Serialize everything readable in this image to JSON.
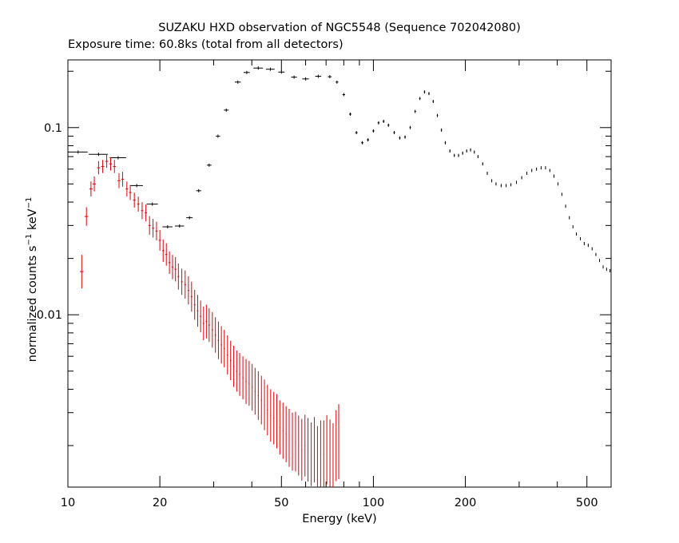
{
  "chart_data": {
    "type": "scatter",
    "title": "SUZAKU HXD observation of NGC5548 (Sequence 702042080)",
    "subtitle": "Exposure time: 60.8ks (total from all detectors)",
    "xlabel": "Energy (keV)",
    "ylabel_main": "normalized counts s",
    "ylabel_sup1": "−1",
    "ylabel_mid": " keV",
    "ylabel_sup2": "−1",
    "x_scale": "log",
    "y_scale": "log",
    "xlim": [
      10,
      600
    ],
    "ylim": [
      0.0012,
      0.23
    ],
    "x_ticks": [
      {
        "value": 10,
        "label": "10"
      },
      {
        "value": 20,
        "label": "20"
      },
      {
        "value": 50,
        "label": "50"
      },
      {
        "value": 100,
        "label": "100"
      },
      {
        "value": 200,
        "label": "200"
      },
      {
        "value": 500,
        "label": "500"
      }
    ],
    "y_ticks": [
      {
        "value": 0.1,
        "label": "0.1"
      },
      {
        "value": 0.01,
        "label": "0.01"
      }
    ],
    "grid": false,
    "colors": {
      "series1": "#000000",
      "series2": "#e00000",
      "axes": "#000000"
    },
    "series": [
      {
        "color": "#000000",
        "points": [
          [
            10.8,
            0.074,
            0.8,
            0.0
          ],
          [
            12.6,
            0.072,
            0.9,
            0.0
          ],
          [
            14.6,
            0.069,
            0.9,
            0.0
          ],
          [
            16.8,
            0.049,
            0.8,
            0.0
          ],
          [
            18.9,
            0.039,
            0.8,
            0.0
          ],
          [
            21.2,
            0.0295,
            0.8,
            0.0
          ],
          [
            23.2,
            0.0298,
            0.8,
            0.0
          ],
          [
            25.0,
            0.033,
            0.6,
            0.0
          ],
          [
            26.8,
            0.046,
            0.5,
            0.0
          ],
          [
            29.0,
            0.063,
            0.5,
            0.0
          ],
          [
            31.0,
            0.09,
            0.5,
            0.0
          ],
          [
            33.0,
            0.124,
            0.6,
            0.0
          ],
          [
            36.0,
            0.175,
            0.8,
            0.0
          ],
          [
            38.5,
            0.197,
            0.9,
            0.0
          ],
          [
            42.0,
            0.208,
            1.5,
            0.0
          ],
          [
            46.0,
            0.205,
            1.5,
            0.0
          ],
          [
            50.0,
            0.198,
            1.2,
            0.0
          ],
          [
            55.0,
            0.186,
            1.2,
            0.0
          ],
          [
            60.0,
            0.182,
            1.5,
            0.0
          ],
          [
            66.0,
            0.188,
            1.5,
            0.0
          ],
          [
            72.0,
            0.187,
            1.0,
            0.0
          ],
          [
            76.0,
            0.175,
            0.8,
            0.0
          ],
          [
            80.0,
            0.15,
            0.8,
            0.0
          ],
          [
            84.0,
            0.118,
            0.8,
            0.0
          ],
          [
            88.0,
            0.094,
            0.8,
            0.0
          ],
          [
            92.0,
            0.083,
            0.8,
            0.0
          ],
          [
            96.0,
            0.086,
            0.8,
            0.0
          ],
          [
            100.0,
            0.096,
            0.8,
            0.0
          ],
          [
            104.0,
            0.106,
            0.8,
            0.0
          ],
          [
            108.0,
            0.108,
            0.8,
            0.0
          ],
          [
            112.0,
            0.103,
            0.8,
            0.0
          ],
          [
            117.0,
            0.094,
            0.8,
            0.0
          ],
          [
            122.0,
            0.088,
            0.8,
            0.0
          ],
          [
            127.0,
            0.089,
            0.8,
            0.0
          ],
          [
            132.0,
            0.1,
            0.8,
            0.0
          ],
          [
            137.0,
            0.122,
            0.8,
            0.0
          ],
          [
            142.0,
            0.143,
            0.8,
            0.0
          ],
          [
            147.0,
            0.155,
            0.8,
            0.0
          ],
          [
            152.0,
            0.152,
            0.8,
            0.0
          ],
          [
            157.0,
            0.138,
            0.8,
            0.0
          ],
          [
            162.0,
            0.116,
            0.8,
            0.0
          ],
          [
            167.0,
            0.097,
            0.8,
            0.0
          ],
          [
            172.0,
            0.083,
            0.8,
            0.0
          ],
          [
            178.0,
            0.075,
            0.8,
            0.0
          ],
          [
            184.0,
            0.071,
            0.8,
            0.0
          ],
          [
            190.0,
            0.071,
            0.8,
            0.0
          ],
          [
            196.0,
            0.073,
            0.8,
            0.0
          ],
          [
            202.0,
            0.075,
            0.8,
            0.0
          ],
          [
            208.0,
            0.076,
            0.8,
            0.0
          ],
          [
            214.0,
            0.074,
            0.8,
            0.0
          ],
          [
            220.0,
            0.07,
            0.8,
            0.0
          ],
          [
            228.0,
            0.064,
            0.8,
            0.0
          ],
          [
            236.0,
            0.057,
            0.8,
            0.0
          ],
          [
            244.0,
            0.052,
            0.8,
            0.0
          ],
          [
            252.0,
            0.05,
            0.8,
            0.0
          ],
          [
            262.0,
            0.049,
            0.8,
            0.0
          ],
          [
            272.0,
            0.049,
            0.8,
            0.0
          ],
          [
            282.0,
            0.0495,
            0.8,
            0.0
          ],
          [
            294.0,
            0.051,
            0.8,
            0.0
          ],
          [
            306.0,
            0.054,
            0.8,
            0.0
          ],
          [
            318.0,
            0.057,
            0.8,
            0.0
          ],
          [
            330.0,
            0.059,
            0.8,
            0.0
          ],
          [
            342.0,
            0.06,
            0.8,
            0.0
          ],
          [
            354.0,
            0.061,
            0.8,
            0.0
          ],
          [
            366.0,
            0.061,
            0.8,
            0.0
          ],
          [
            378.0,
            0.059,
            0.8,
            0.0
          ],
          [
            390.0,
            0.055,
            0.8,
            0.0
          ],
          [
            402.0,
            0.05,
            0.8,
            0.0
          ],
          [
            414.0,
            0.044,
            0.8,
            0.0
          ],
          [
            426.0,
            0.038,
            0.8,
            0.0
          ],
          [
            438.0,
            0.033,
            0.8,
            0.0
          ],
          [
            450.0,
            0.0295,
            0.8,
            0.0
          ],
          [
            462.0,
            0.027,
            0.8,
            0.0
          ],
          [
            476.0,
            0.0255,
            0.8,
            0.0
          ],
          [
            490.0,
            0.024,
            0.8,
            0.0
          ],
          [
            505.0,
            0.0235,
            0.8,
            0.0
          ],
          [
            520.0,
            0.0225,
            0.8,
            0.0
          ],
          [
            535.0,
            0.021,
            0.8,
            0.0
          ],
          [
            550.0,
            0.0195,
            0.8,
            0.0
          ],
          [
            565.0,
            0.018,
            0.8,
            0.0
          ],
          [
            580.0,
            0.0175,
            0.8,
            0.0
          ],
          [
            595.0,
            0.0172,
            0.8,
            0.0
          ]
        ]
      },
      {
        "color": "#e00000",
        "points": [
          [
            11.1,
            0.017,
            0.15,
            0.09
          ],
          [
            11.5,
            0.0335,
            0.15,
            0.05
          ],
          [
            11.9,
            0.047,
            0.15,
            0.04
          ],
          [
            12.2,
            0.05,
            0.15,
            0.04
          ],
          [
            12.6,
            0.061,
            0.15,
            0.035
          ],
          [
            13.0,
            0.062,
            0.15,
            0.035
          ],
          [
            13.4,
            0.066,
            0.15,
            0.035
          ],
          [
            13.8,
            0.064,
            0.15,
            0.035
          ],
          [
            14.2,
            0.062,
            0.15,
            0.035
          ],
          [
            14.7,
            0.052,
            0.15,
            0.04
          ],
          [
            15.1,
            0.053,
            0.15,
            0.04
          ],
          [
            15.6,
            0.047,
            0.15,
            0.04
          ],
          [
            16.0,
            0.045,
            0.15,
            0.04
          ],
          [
            16.5,
            0.041,
            0.15,
            0.04
          ],
          [
            17.0,
            0.039,
            0.15,
            0.04
          ],
          [
            17.5,
            0.036,
            0.15,
            0.045
          ],
          [
            18.0,
            0.035,
            0.15,
            0.045
          ],
          [
            18.5,
            0.03,
            0.15,
            0.05
          ],
          [
            19.0,
            0.029,
            0.15,
            0.05
          ],
          [
            19.5,
            0.028,
            0.15,
            0.05
          ],
          [
            20.0,
            0.025,
            0.15,
            0.055
          ],
          [
            20.5,
            0.022,
            0.15,
            0.06
          ],
          [
            21.0,
            0.021,
            0.15,
            0.06
          ],
          [
            21.5,
            0.019,
            0.15,
            0.06
          ],
          [
            22.0,
            0.018,
            0.15,
            0.065
          ],
          [
            22.5,
            0.0175,
            0.15,
            0.065
          ],
          [
            23.0,
            0.016,
            0.15,
            0.07
          ],
          [
            23.6,
            0.015,
            0.15,
            0.07
          ],
          [
            24.2,
            0.0145,
            0.15,
            0.075
          ],
          [
            24.8,
            0.0135,
            0.15,
            0.075
          ],
          [
            25.4,
            0.0125,
            0.15,
            0.08
          ],
          [
            26.0,
            0.0113,
            0.15,
            0.08
          ],
          [
            26.6,
            0.0105,
            0.15,
            0.085
          ],
          [
            27.2,
            0.0098,
            0.15,
            0.085
          ],
          [
            27.8,
            0.009,
            0.15,
            0.09
          ],
          [
            28.4,
            0.0092,
            0.15,
            0.09
          ],
          [
            29.0,
            0.0088,
            0.15,
            0.09
          ],
          [
            29.7,
            0.0083,
            0.15,
            0.095
          ],
          [
            30.4,
            0.0078,
            0.15,
            0.095
          ],
          [
            31.1,
            0.0073,
            0.15,
            0.1
          ],
          [
            31.8,
            0.0069,
            0.15,
            0.1
          ],
          [
            32.5,
            0.0066,
            0.15,
            0.1
          ],
          [
            33.3,
            0.0061,
            0.15,
            0.105
          ],
          [
            34.1,
            0.0057,
            0.15,
            0.105
          ],
          [
            34.9,
            0.0053,
            0.15,
            0.11
          ],
          [
            35.7,
            0.005,
            0.15,
            0.11
          ],
          [
            36.5,
            0.0048,
            0.15,
            0.115
          ],
          [
            37.4,
            0.0046,
            0.15,
            0.115
          ],
          [
            38.3,
            0.0044,
            0.15,
            0.12
          ],
          [
            39.2,
            0.0043,
            0.15,
            0.12
          ],
          [
            40.1,
            0.0041,
            0.15,
            0.125
          ],
          [
            41.0,
            0.0039,
            0.15,
            0.125
          ],
          [
            42.0,
            0.0037,
            0.15,
            0.13
          ],
          [
            43.0,
            0.0035,
            0.15,
            0.13
          ],
          [
            44.0,
            0.0033,
            0.15,
            0.135
          ],
          [
            45.0,
            0.0031,
            0.15,
            0.135
          ],
          [
            46.1,
            0.0029,
            0.15,
            0.14
          ],
          [
            47.2,
            0.0028,
            0.15,
            0.14
          ],
          [
            48.3,
            0.0027,
            0.15,
            0.145
          ],
          [
            49.4,
            0.0025,
            0.15,
            0.145
          ],
          [
            50.6,
            0.0024,
            0.15,
            0.15
          ],
          [
            51.8,
            0.0023,
            0.15,
            0.15
          ],
          [
            53.0,
            0.0022,
            0.15,
            0.155
          ],
          [
            54.3,
            0.0021,
            0.15,
            0.155
          ],
          [
            55.6,
            0.0021,
            0.15,
            0.16
          ],
          [
            56.9,
            0.002,
            0.15,
            0.16
          ],
          [
            58.3,
            0.0019,
            0.15,
            0.165
          ],
          [
            59.7,
            0.002,
            0.15,
            0.165
          ],
          [
            61.1,
            0.0019,
            0.15,
            0.17
          ],
          [
            62.6,
            0.0018,
            0.15,
            0.17
          ],
          [
            64.1,
            0.0019,
            0.15,
            0.175
          ],
          [
            65.6,
            0.0017,
            0.15,
            0.175
          ],
          [
            67.2,
            0.0018,
            0.15,
            0.18
          ],
          [
            68.8,
            0.0018,
            0.15,
            0.18
          ],
          [
            70.4,
            0.0019,
            0.15,
            0.185
          ],
          [
            72.1,
            0.0018,
            0.15,
            0.185
          ],
          [
            73.8,
            0.0017,
            0.15,
            0.19
          ],
          [
            75.5,
            0.002,
            0.15,
            0.19
          ],
          [
            77.0,
            0.0021,
            0.15,
            0.2
          ]
        ]
      }
    ]
  }
}
